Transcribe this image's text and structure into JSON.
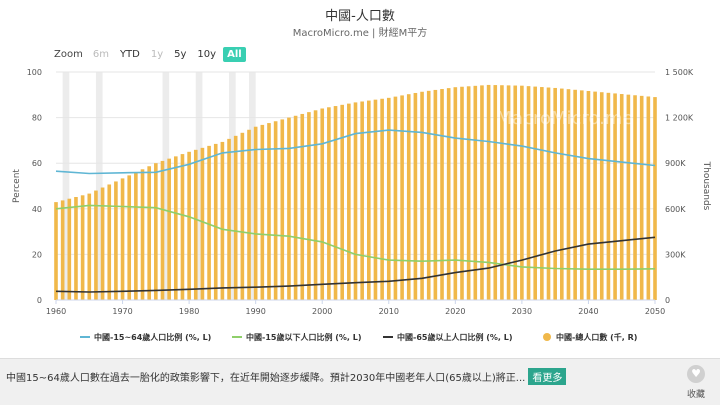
{
  "header": {
    "title": "中國-人口數",
    "subtitle": "MacroMicro.me | 財經M平方"
  },
  "zoom": {
    "label": "Zoom",
    "buttons": [
      {
        "label": "6m",
        "state": "disabled"
      },
      {
        "label": "YTD",
        "state": "normal"
      },
      {
        "label": "1y",
        "state": "disabled"
      },
      {
        "label": "5y",
        "state": "normal"
      },
      {
        "label": "10y",
        "state": "normal"
      },
      {
        "label": "All",
        "state": "active"
      }
    ]
  },
  "watermark": "MacroMicro.me",
  "chart_data": {
    "type": "bar",
    "x_ticks": [
      "1960",
      "1970",
      "1980",
      "1990",
      "2000",
      "2010",
      "2020",
      "2030",
      "2040",
      "2050"
    ],
    "xlim": [
      1960,
      2050
    ],
    "left_axis": {
      "label": "Percent",
      "ylim": [
        0,
        100
      ],
      "ticks": [
        "0",
        "20",
        "40",
        "60",
        "80",
        "100"
      ]
    },
    "right_axis": {
      "label": "Thousands",
      "ylim": [
        0,
        1500
      ],
      "ticks": [
        "0",
        "300K",
        "600K",
        "900K",
        "1 200K",
        "1 500K"
      ]
    },
    "legend": {
      "position": "bottom"
    },
    "total_population_series": {
      "name": "中國-總人口數 (千, R)",
      "color": "#f0b84a",
      "axis": "right",
      "points": [
        [
          1960,
          644
        ],
        [
          1965,
          700
        ],
        [
          1970,
          800
        ],
        [
          1975,
          900
        ],
        [
          1980,
          975
        ],
        [
          1985,
          1040
        ],
        [
          1990,
          1140
        ],
        [
          1995,
          1200
        ],
        [
          2000,
          1260
        ],
        [
          2005,
          1300
        ],
        [
          2010,
          1330
        ],
        [
          2015,
          1370
        ],
        [
          2020,
          1400
        ],
        [
          2025,
          1415
        ],
        [
          2030,
          1410
        ],
        [
          2035,
          1395
        ],
        [
          2040,
          1375
        ],
        [
          2045,
          1355
        ],
        [
          2050,
          1335
        ]
      ]
    },
    "line_series": [
      {
        "name": "中國-15~64歲人口比例 (%, L)",
        "color": "#5fb6d4",
        "axis": "left",
        "points": [
          [
            1960,
            56.5
          ],
          [
            1965,
            55.5
          ],
          [
            1970,
            55.8
          ],
          [
            1975,
            56
          ],
          [
            1980,
            59.5
          ],
          [
            1985,
            64.5
          ],
          [
            1990,
            66
          ],
          [
            1995,
            66.5
          ],
          [
            2000,
            68.5
          ],
          [
            2005,
            73
          ],
          [
            2010,
            74.5
          ],
          [
            2015,
            73.5
          ],
          [
            2020,
            71
          ],
          [
            2025,
            69.5
          ],
          [
            2030,
            67.5
          ],
          [
            2035,
            64.5
          ],
          [
            2040,
            62
          ],
          [
            2045,
            60.5
          ],
          [
            2050,
            59
          ]
        ]
      },
      {
        "name": "中國-15歲以下人口比例 (%, L)",
        "color": "#8fcf6a",
        "axis": "left",
        "points": [
          [
            1960,
            40
          ],
          [
            1965,
            41.5
          ],
          [
            1970,
            41
          ],
          [
            1975,
            40.5
          ],
          [
            1980,
            36.5
          ],
          [
            1985,
            31
          ],
          [
            1990,
            29
          ],
          [
            1995,
            28
          ],
          [
            2000,
            25.5
          ],
          [
            2005,
            20
          ],
          [
            2010,
            17.5
          ],
          [
            2015,
            17
          ],
          [
            2020,
            17.5
          ],
          [
            2025,
            16.5
          ],
          [
            2030,
            14.5
          ],
          [
            2035,
            13.8
          ],
          [
            2040,
            13.5
          ],
          [
            2045,
            13.5
          ],
          [
            2050,
            13.7
          ]
        ]
      },
      {
        "name": "中國-65歲以上人口比例 (%, L)",
        "color": "#333333",
        "axis": "left",
        "points": [
          [
            1960,
            3.8
          ],
          [
            1965,
            3.5
          ],
          [
            1970,
            3.8
          ],
          [
            1975,
            4.2
          ],
          [
            1980,
            4.7
          ],
          [
            1985,
            5.3
          ],
          [
            1990,
            5.6
          ],
          [
            1995,
            6.1
          ],
          [
            2000,
            6.9
          ],
          [
            2005,
            7.6
          ],
          [
            2010,
            8.2
          ],
          [
            2015,
            9.5
          ],
          [
            2020,
            12
          ],
          [
            2025,
            14
          ],
          [
            2030,
            17.5
          ],
          [
            2035,
            21.5
          ],
          [
            2040,
            24.5
          ],
          [
            2045,
            26
          ],
          [
            2050,
            27.5
          ]
        ]
      }
    ],
    "recession_bands": [
      [
        1961,
        1962
      ],
      [
        1966,
        1967
      ],
      [
        1976,
        1977
      ],
      [
        1981,
        1982
      ],
      [
        1986,
        1987
      ],
      [
        1989,
        1990
      ]
    ]
  },
  "footer": {
    "description": "中國15~64歲人口數在過去一胎化的政策影響下，在近年開始逐步緩降。預計2030年中國老年人口(65歲以上)將正...",
    "more_label": "看更多",
    "favorite_label": "收藏"
  }
}
